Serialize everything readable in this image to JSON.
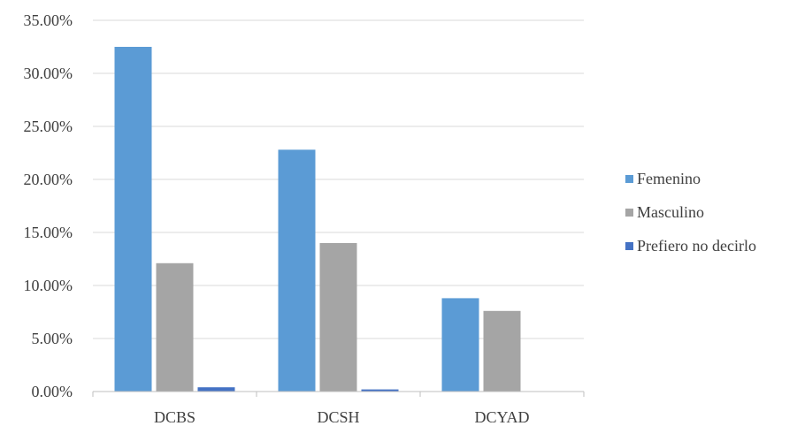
{
  "chart_data": {
    "type": "bar",
    "categories": [
      "DCBS",
      "DCSH",
      "DCYAD"
    ],
    "series": [
      {
        "name": "Femenino",
        "values": [
          32.5,
          22.8,
          8.8
        ],
        "color": "#5b9bd5"
      },
      {
        "name": "Masculino",
        "values": [
          12.1,
          14.0,
          7.6
        ],
        "color": "#a5a5a5"
      },
      {
        "name": "Prefiero no decirlo",
        "values": [
          0.4,
          0.2,
          0.0
        ],
        "color": "#4472c4"
      }
    ],
    "yticks": [
      "0.00%",
      "5.00%",
      "10.00%",
      "15.00%",
      "20.00%",
      "25.00%",
      "30.00%",
      "35.00%"
    ],
    "ylim": [
      0,
      35
    ],
    "grid": true,
    "legend_position": "right"
  }
}
